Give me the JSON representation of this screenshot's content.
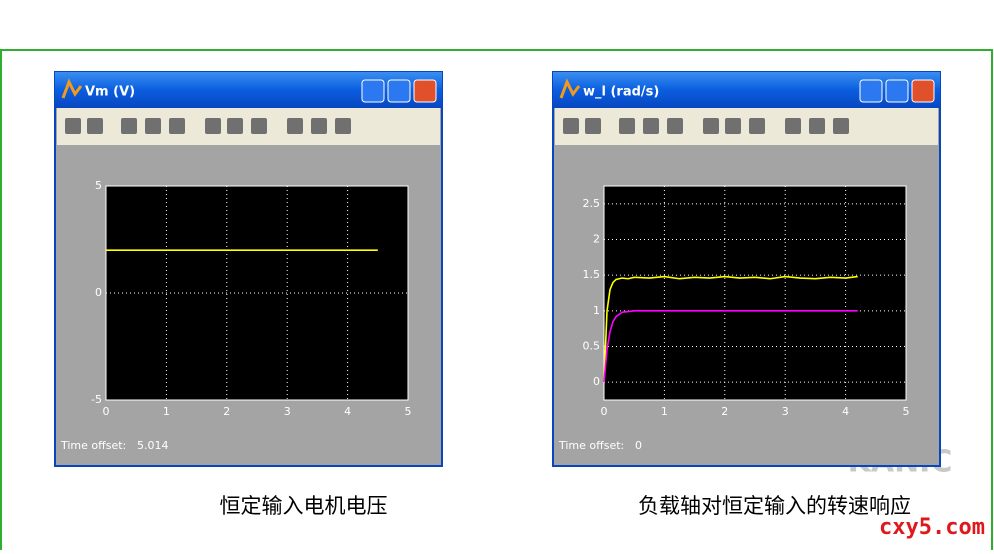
{
  "chart_data": [
    {
      "type": "line",
      "title": "Vm (V)",
      "caption": "恒定输入电机电压",
      "time_offset_label": "Time offset:",
      "time_offset": "5.014",
      "x": [
        0,
        4.5
      ],
      "series": [
        {
          "color": "#ffff00",
          "values": [
            2,
            2
          ]
        }
      ],
      "xlim": [
        0,
        5
      ],
      "xticks": [
        0,
        1,
        2,
        3,
        4,
        5
      ],
      "ylim": [
        -5,
        5
      ],
      "yticks": [
        -5,
        0,
        5
      ],
      "grid": true
    },
    {
      "type": "line",
      "title": "w_l (rad/s)",
      "caption": "负载轴对恒定输入的转速响应",
      "time_offset_label": "Time offset:",
      "time_offset": "0",
      "x": [
        0,
        0.05,
        0.1,
        0.15,
        0.2,
        0.3,
        0.4,
        0.5,
        0.75,
        1,
        1.25,
        1.5,
        1.75,
        2,
        2.25,
        2.5,
        2.75,
        3,
        3.25,
        3.5,
        3.75,
        4,
        4.2
      ],
      "series": [
        {
          "color": "#ffff00",
          "values": [
            0,
            1.0,
            1.3,
            1.4,
            1.44,
            1.46,
            1.45,
            1.47,
            1.46,
            1.48,
            1.45,
            1.47,
            1.46,
            1.48,
            1.46,
            1.47,
            1.45,
            1.48,
            1.46,
            1.45,
            1.47,
            1.46,
            1.48
          ]
        },
        {
          "color": "#ff00ff",
          "values": [
            0,
            0.46,
            0.71,
            0.85,
            0.92,
            0.98,
            0.99,
            1,
            1,
            1,
            1,
            1,
            1,
            1,
            1,
            1,
            1,
            1,
            1,
            1,
            1,
            1,
            1
          ]
        }
      ],
      "xlim": [
        0,
        5
      ],
      "xticks": [
        0,
        1,
        2,
        3,
        4,
        5
      ],
      "ylim": [
        -0.25,
        2.75
      ],
      "yticks": [
        0,
        0.5,
        1,
        1.5,
        2,
        2.5
      ],
      "grid": true
    }
  ],
  "watermarks": [
    "KANIC",
    "cxy5.com"
  ]
}
